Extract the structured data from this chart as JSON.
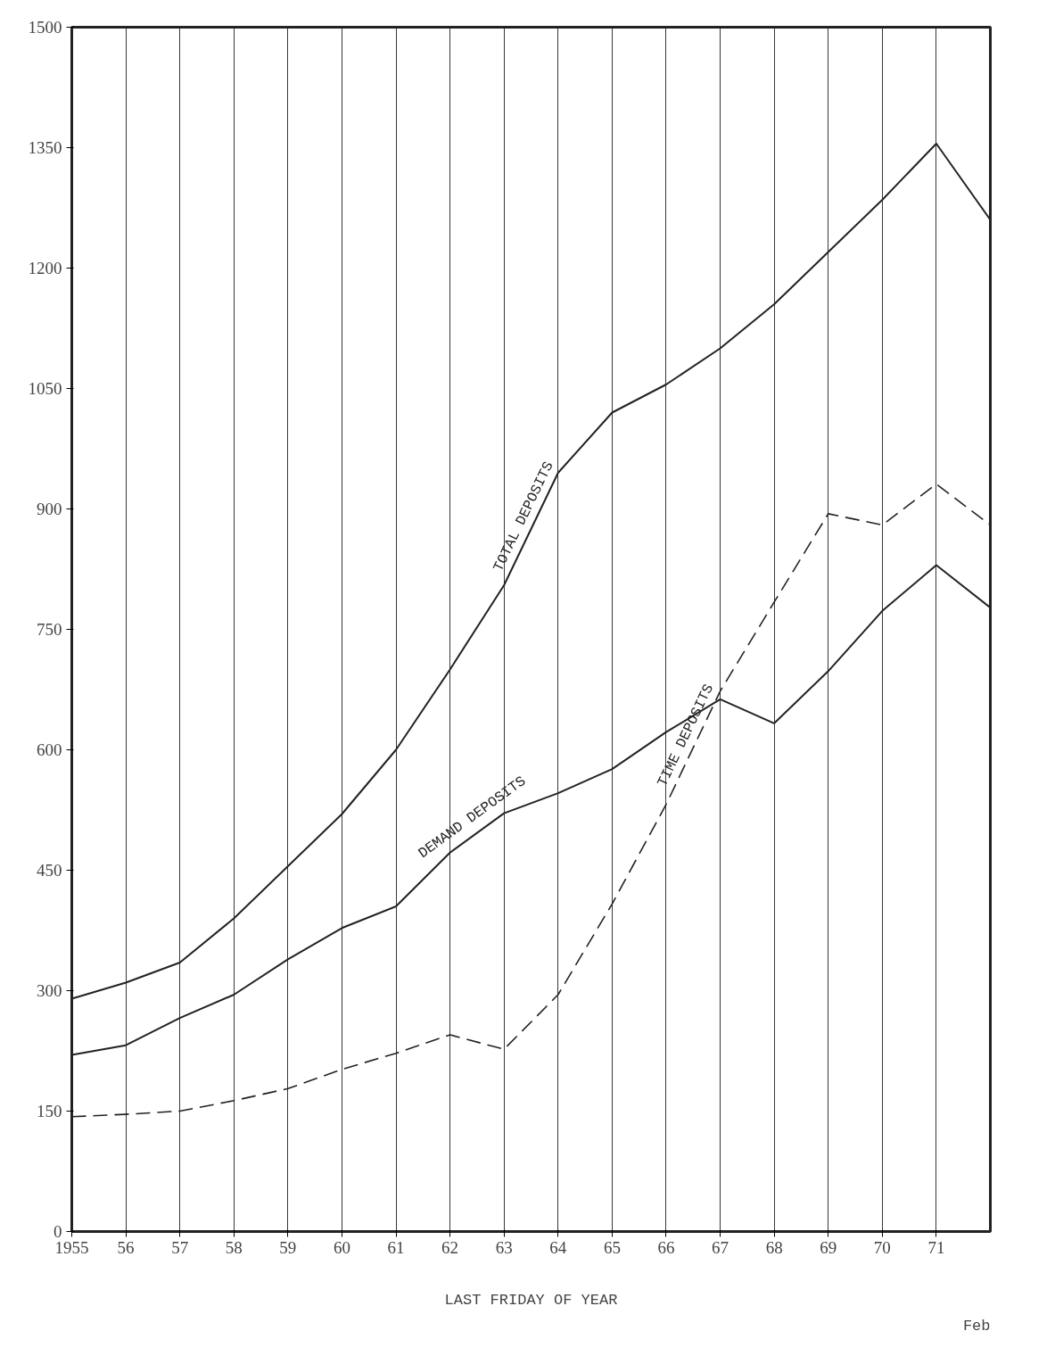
{
  "chart_data": {
    "type": "line",
    "xlabel": "LAST FRIDAY OF YEAR",
    "annotations": [
      "Feb"
    ],
    "x": [
      1955,
      1956,
      1957,
      1958,
      1959,
      1960,
      1961,
      1962,
      1963,
      1964,
      1965,
      1966,
      1967,
      1968,
      1969,
      1970,
      1971,
      1972
    ],
    "xlim": [
      1955,
      1972
    ],
    "xticks": [
      {
        "value": 1955,
        "label": "1955"
      },
      {
        "value": 1956,
        "label": "56"
      },
      {
        "value": 1957,
        "label": "57"
      },
      {
        "value": 1958,
        "label": "58"
      },
      {
        "value": 1959,
        "label": "59"
      },
      {
        "value": 1960,
        "label": "60"
      },
      {
        "value": 1961,
        "label": "61"
      },
      {
        "value": 1962,
        "label": "62"
      },
      {
        "value": 1963,
        "label": "63"
      },
      {
        "value": 1964,
        "label": "64"
      },
      {
        "value": 1965,
        "label": "65"
      },
      {
        "value": 1966,
        "label": "66"
      },
      {
        "value": 1967,
        "label": "67"
      },
      {
        "value": 1968,
        "label": "68"
      },
      {
        "value": 1969,
        "label": "69"
      },
      {
        "value": 1970,
        "label": "70"
      },
      {
        "value": 1971,
        "label": "71"
      }
    ],
    "ylim": [
      0,
      1500
    ],
    "yticks": [
      0,
      150,
      300,
      450,
      600,
      750,
      900,
      1050,
      1200,
      1350,
      1500
    ],
    "grid": "x",
    "legend": false,
    "series": [
      {
        "name": "TOTAL DEPOSITS",
        "color": "#222222",
        "line_style": "solid",
        "values": [
          290,
          310,
          335,
          390,
          455,
          520,
          600,
          700,
          805,
          945,
          1020,
          1055,
          1100,
          1155,
          1220,
          1285,
          1355,
          1260
        ]
      },
      {
        "name": "DEMAND DEPOSITS",
        "color": "#222222",
        "line_style": "solid",
        "values": [
          220,
          232,
          266,
          295,
          339,
          378,
          405,
          472,
          521,
          546,
          576,
          622,
          663,
          633,
          698,
          773,
          830,
          777
        ]
      },
      {
        "name": "TIME DEPOSITS",
        "color": "#222222",
        "line_style": "dashed",
        "values": [
          143,
          146,
          150,
          163,
          178,
          202,
          222,
          245,
          227,
          295,
          408,
          532,
          673,
          784,
          894,
          880,
          931,
          880
        ]
      }
    ]
  }
}
